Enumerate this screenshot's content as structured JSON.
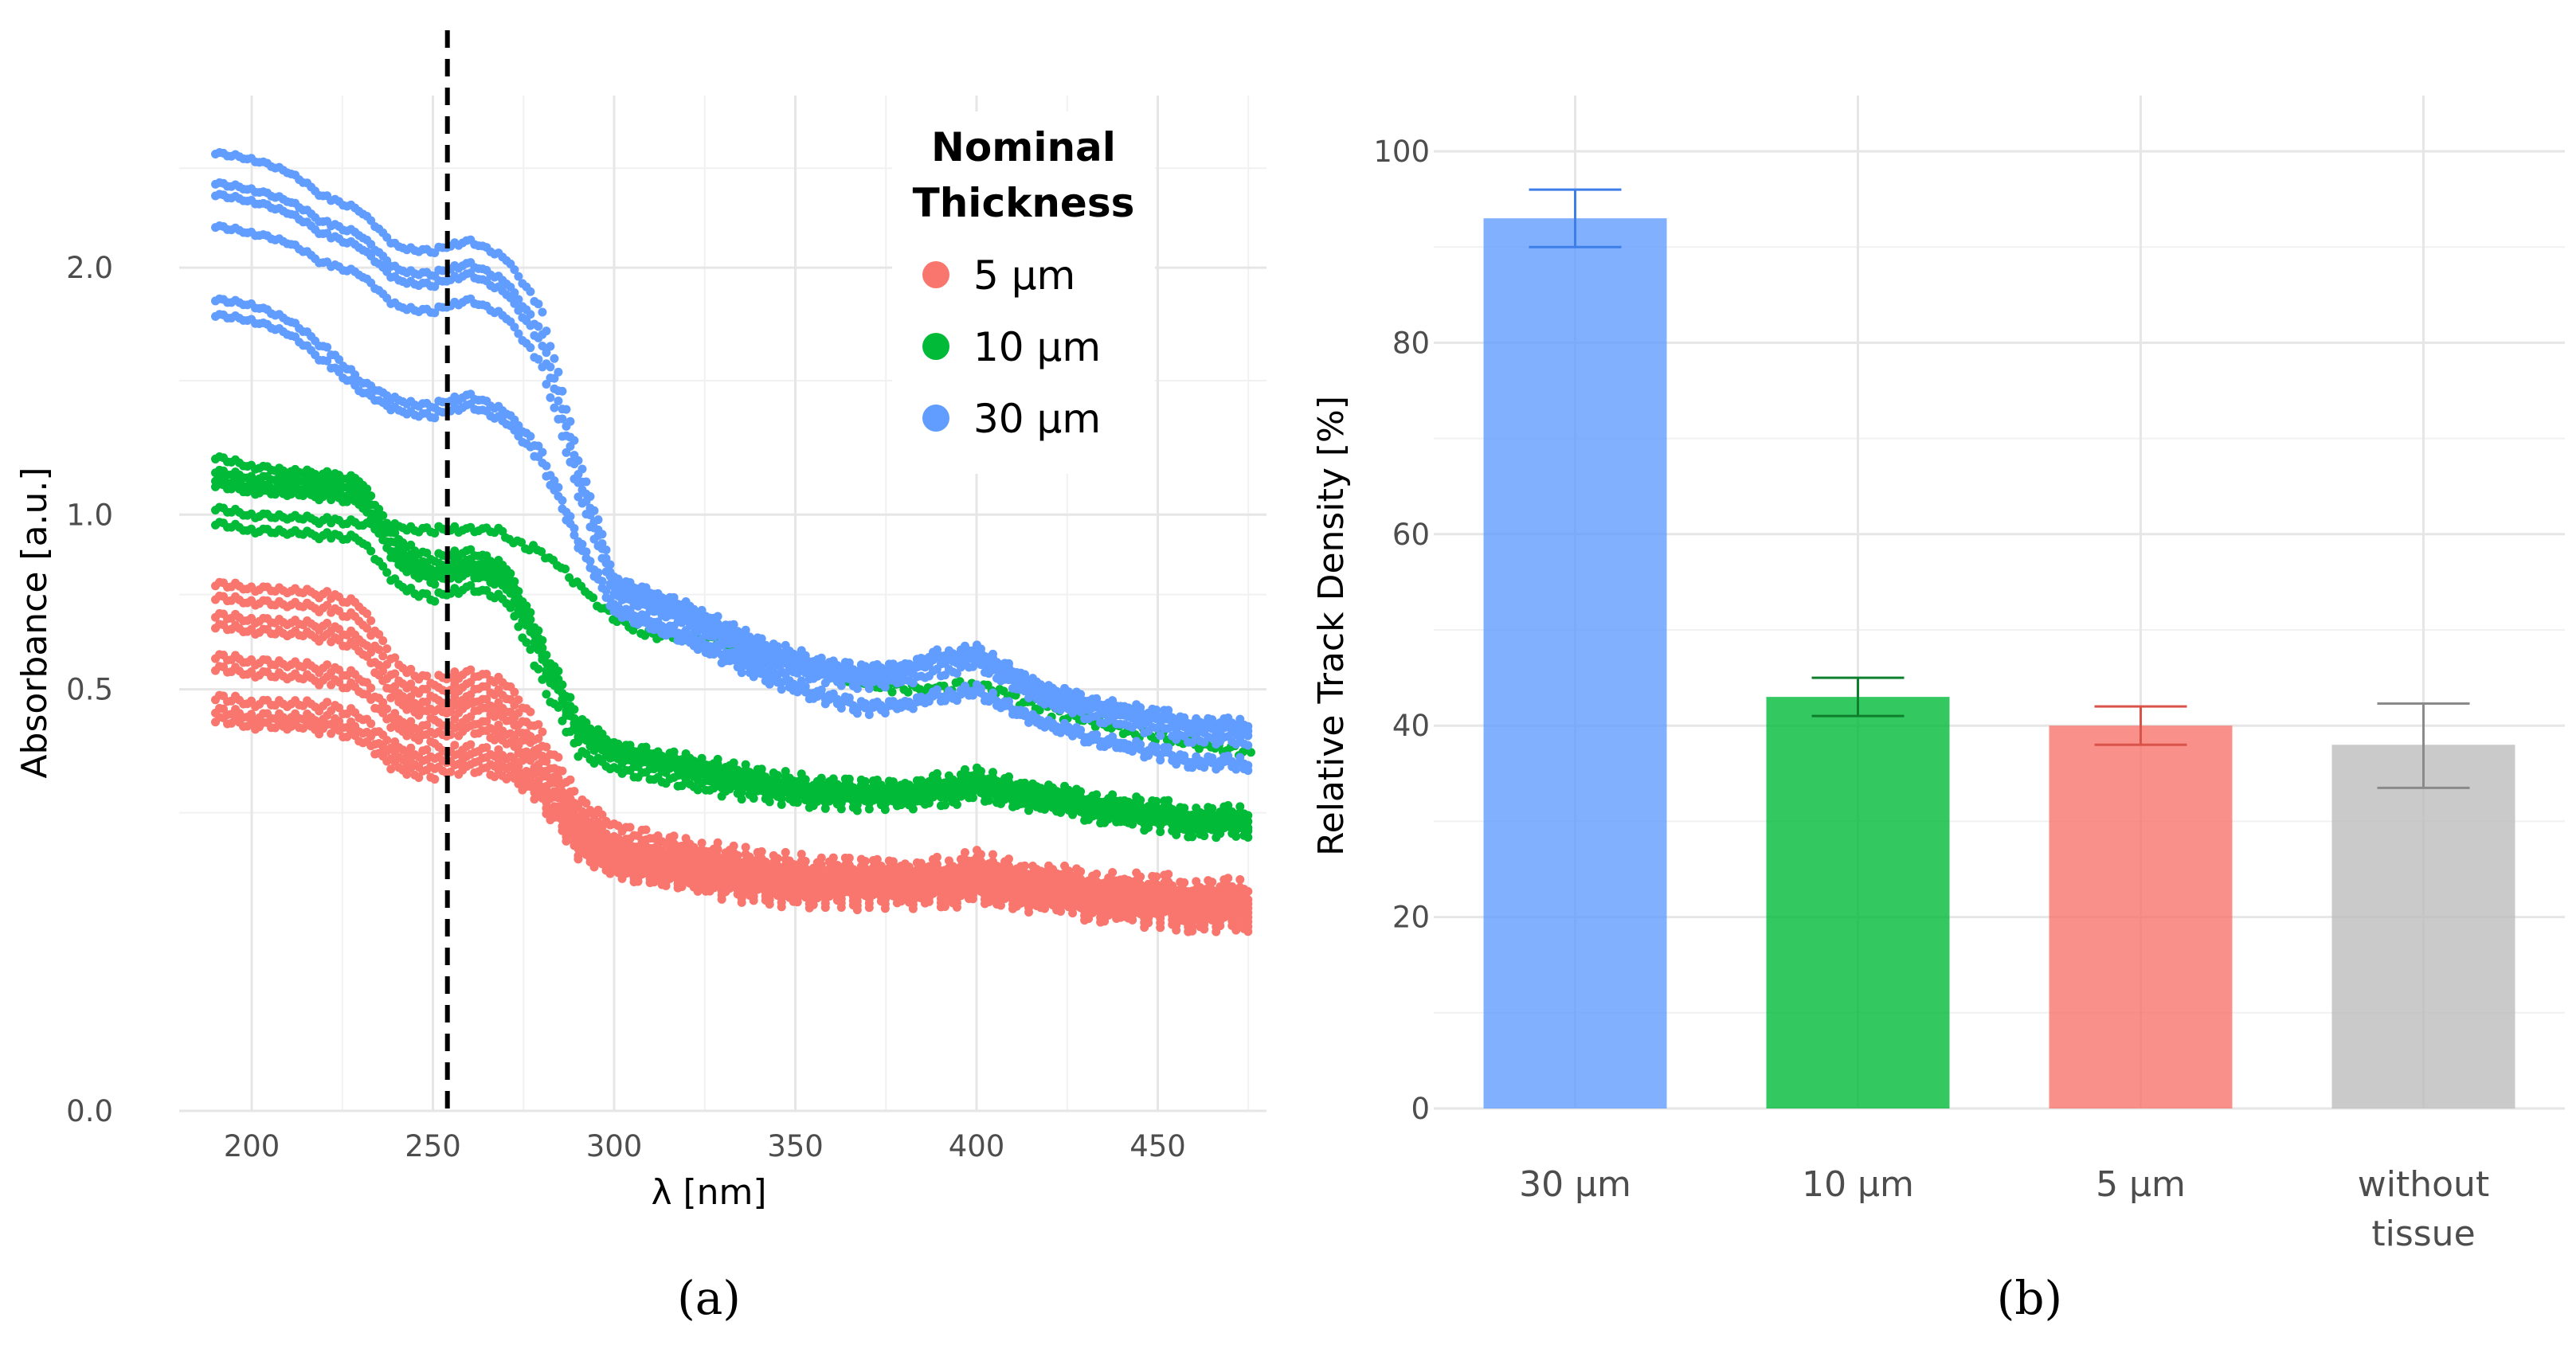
{
  "chart_data": [
    {
      "type": "scatter",
      "caption": "(a)",
      "xlabel": "λ [nm]",
      "ylabel": "Absorbance [a.u.]",
      "x_ticks": [
        200,
        250,
        300,
        350,
        400,
        450
      ],
      "y_ticks": [
        0.0,
        0.5,
        1.0,
        2.0
      ],
      "y_tick_labels": [
        "0.0",
        "0.5",
        "1.0",
        "2.0"
      ],
      "y_scale": "sqrt",
      "xlim": [
        180,
        480
      ],
      "ylim": [
        0,
        2.9
      ],
      "grid": true,
      "vline": {
        "x": 254,
        "style": "dashed"
      },
      "legend": {
        "title_lines": [
          "Nominal",
          "Thickness"
        ],
        "placement": "top-right"
      },
      "x": [
        190,
        200,
        210,
        220,
        230,
        240,
        250,
        260,
        270,
        280,
        290,
        300,
        320,
        340,
        360,
        370,
        380,
        390,
        400,
        420,
        440,
        460,
        476
      ],
      "series": [
        {
          "name": "5 µm",
          "color": "#F8766D",
          "curves": [
            [
              0.78,
              0.77,
              0.76,
              0.75,
              0.72,
              0.56,
              0.52,
              0.54,
              0.52,
              0.4,
              0.27,
              0.23,
              0.2,
              0.18,
              0.17,
              0.17,
              0.17,
              0.17,
              0.18,
              0.16,
              0.15,
              0.145,
              0.14
            ],
            [
              0.74,
              0.73,
              0.72,
              0.71,
              0.68,
              0.52,
              0.49,
              0.51,
              0.49,
              0.37,
              0.25,
              0.21,
              0.19,
              0.17,
              0.16,
              0.16,
              0.16,
              0.16,
              0.17,
              0.15,
              0.14,
              0.135,
              0.13
            ],
            [
              0.69,
              0.68,
              0.67,
              0.66,
              0.63,
              0.49,
              0.46,
              0.48,
              0.46,
              0.35,
              0.24,
              0.2,
              0.18,
              0.16,
              0.155,
              0.155,
              0.155,
              0.155,
              0.16,
              0.145,
              0.135,
              0.13,
              0.125
            ],
            [
              0.66,
              0.65,
              0.64,
              0.63,
              0.6,
              0.47,
              0.44,
              0.46,
              0.44,
              0.34,
              0.23,
              0.19,
              0.17,
              0.155,
              0.15,
              0.15,
              0.15,
              0.15,
              0.155,
              0.14,
              0.13,
              0.125,
              0.12
            ],
            [
              0.58,
              0.57,
              0.56,
              0.55,
              0.53,
              0.43,
              0.41,
              0.43,
              0.41,
              0.32,
              0.22,
              0.18,
              0.165,
              0.15,
              0.145,
              0.145,
              0.145,
              0.145,
              0.15,
              0.135,
              0.125,
              0.12,
              0.115
            ],
            [
              0.55,
              0.54,
              0.53,
              0.52,
              0.5,
              0.41,
              0.39,
              0.41,
              0.39,
              0.31,
              0.21,
              0.175,
              0.16,
              0.145,
              0.14,
              0.14,
              0.14,
              0.14,
              0.145,
              0.13,
              0.12,
              0.115,
              0.11
            ],
            [
              0.48,
              0.47,
              0.465,
              0.46,
              0.44,
              0.37,
              0.36,
              0.37,
              0.36,
              0.29,
              0.2,
              0.17,
              0.155,
              0.14,
              0.135,
              0.135,
              0.135,
              0.135,
              0.14,
              0.125,
              0.115,
              0.11,
              0.105
            ],
            [
              0.45,
              0.44,
              0.435,
              0.43,
              0.41,
              0.35,
              0.34,
              0.35,
              0.34,
              0.28,
              0.19,
              0.165,
              0.15,
              0.135,
              0.13,
              0.13,
              0.13,
              0.13,
              0.135,
              0.12,
              0.11,
              0.105,
              0.1
            ],
            [
              0.43,
              0.42,
              0.415,
              0.41,
              0.39,
              0.33,
              0.32,
              0.33,
              0.32,
              0.27,
              0.185,
              0.16,
              0.145,
              0.13,
              0.125,
              0.125,
              0.125,
              0.125,
              0.13,
              0.115,
              0.105,
              0.1,
              0.095
            ]
          ]
        },
        {
          "name": "10 µm",
          "color": "#00BA38",
          "curves": [
            [
              1.2,
              1.17,
              1.15,
              1.14,
              1.12,
              0.92,
              0.86,
              0.88,
              0.84,
              0.62,
              0.43,
              0.38,
              0.35,
              0.32,
              0.3,
              0.3,
              0.3,
              0.31,
              0.32,
              0.29,
              0.27,
              0.255,
              0.25
            ],
            [
              1.15,
              1.13,
              1.12,
              1.11,
              1.09,
              0.89,
              0.83,
              0.85,
              0.82,
              0.6,
              0.41,
              0.37,
              0.34,
              0.31,
              0.29,
              0.29,
              0.29,
              0.3,
              0.31,
              0.28,
              0.26,
              0.245,
              0.24
            ],
            [
              1.12,
              1.1,
              1.09,
              1.08,
              1.06,
              0.86,
              0.81,
              0.83,
              0.8,
              0.58,
              0.4,
              0.36,
              0.33,
              0.3,
              0.28,
              0.28,
              0.28,
              0.29,
              0.3,
              0.27,
              0.25,
              0.235,
              0.23
            ],
            [
              1.1,
              1.08,
              1.07,
              1.06,
              1.04,
              0.84,
              0.79,
              0.81,
              0.78,
              0.57,
              0.39,
              0.35,
              0.32,
              0.29,
              0.275,
              0.275,
              0.275,
              0.285,
              0.29,
              0.265,
              0.245,
              0.23,
              0.225
            ],
            [
              1.02,
              1.0,
              0.99,
              0.98,
              0.97,
              0.96,
              0.95,
              0.95,
              0.95
            ],
            [
              0.97,
              0.95,
              0.94,
              0.93,
              0.92,
              0.78,
              0.74,
              0.77,
              0.74,
              0.52,
              0.36,
              0.33,
              0.3,
              0.28,
              0.265,
              0.265,
              0.265,
              0.27,
              0.28,
              0.255,
              0.235,
              0.22,
              0.215
            ]
          ],
          "curve_x_note": "shorter curve spans first 9 x values",
          "extra_curve": {
            "x": [
              270,
              280,
              290,
              300,
              310,
              320,
              330,
              340,
              350,
              360,
              380,
              400,
              420,
              440,
              460,
              476
            ],
            "y": [
              0.92,
              0.88,
              0.78,
              0.68,
              0.64,
              0.63,
              0.62,
              0.6,
              0.57,
              0.53,
              0.5,
              0.51,
              0.45,
              0.41,
              0.38,
              0.36
            ]
          }
        },
        {
          "name": "30 µm",
          "color": "#619CFF",
          "curves": [
            [
              2.58,
              2.55,
              2.48,
              2.35,
              2.28,
              2.1,
              2.08,
              2.13,
              2.05,
              1.8,
              1.2,
              0.8,
              0.72,
              0.62,
              0.56,
              0.55,
              0.56,
              0.59,
              0.6,
              0.5,
              0.46,
              0.43,
              0.42
            ],
            [
              2.42,
              2.39,
              2.33,
              2.22,
              2.16,
              1.99,
              1.97,
              2.02,
              1.94,
              1.7,
              1.15,
              0.78,
              0.7,
              0.6,
              0.55,
              0.54,
              0.55,
              0.58,
              0.59,
              0.49,
              0.45,
              0.42,
              0.41
            ],
            [
              2.36,
              2.33,
              2.27,
              2.16,
              2.1,
              1.94,
              1.92,
              1.97,
              1.89,
              1.65,
              1.12,
              0.77,
              0.69,
              0.59,
              0.54,
              0.53,
              0.54,
              0.57,
              0.58,
              0.48,
              0.44,
              0.41,
              0.4
            ],
            [
              2.2,
              2.17,
              2.12,
              2.02,
              1.97,
              1.82,
              1.8,
              1.85,
              1.78,
              1.56,
              1.07,
              0.75,
              0.67,
              0.57,
              0.52,
              0.51,
              0.52,
              0.54,
              0.56,
              0.46,
              0.42,
              0.39,
              0.38
            ],
            [
              1.85,
              1.83,
              1.76,
              1.64,
              1.5,
              1.42,
              1.4,
              1.44,
              1.38,
              1.22,
              0.92,
              0.72,
              0.64,
              0.55,
              0.48,
              0.46,
              0.47,
              0.49,
              0.5,
              0.42,
              0.38,
              0.35,
              0.34
            ],
            [
              1.78,
              1.76,
              1.7,
              1.58,
              1.46,
              1.38,
              1.36,
              1.4,
              1.34,
              1.18,
              0.9,
              0.7,
              0.62,
              0.53,
              0.47,
              0.45,
              0.46,
              0.48,
              0.49,
              0.41,
              0.37,
              0.34,
              0.33
            ]
          ]
        }
      ]
    },
    {
      "type": "bar",
      "caption": "(b)",
      "xlabel": "",
      "ylabel": "Relative Track Density [%]",
      "ylim": [
        0,
        100
      ],
      "y_ticks": [
        0,
        20,
        40,
        60,
        80,
        100
      ],
      "grid": true,
      "categories": [
        [
          "30 µm"
        ],
        [
          "10 µm"
        ],
        [
          "5 µm"
        ],
        [
          "without",
          "tissue"
        ]
      ],
      "values": [
        93,
        43,
        40,
        38
      ],
      "error_low": [
        90,
        41,
        38,
        33.5
      ],
      "error_high": [
        96,
        45,
        42,
        42.3
      ],
      "colors": [
        "#619CFF",
        "#00BA38",
        "#F8766D",
        "#BDBDBD"
      ],
      "error_colors": [
        "#3D7EE8",
        "#0E7F2C",
        "#D9534A",
        "#8A8A8A"
      ]
    }
  ]
}
